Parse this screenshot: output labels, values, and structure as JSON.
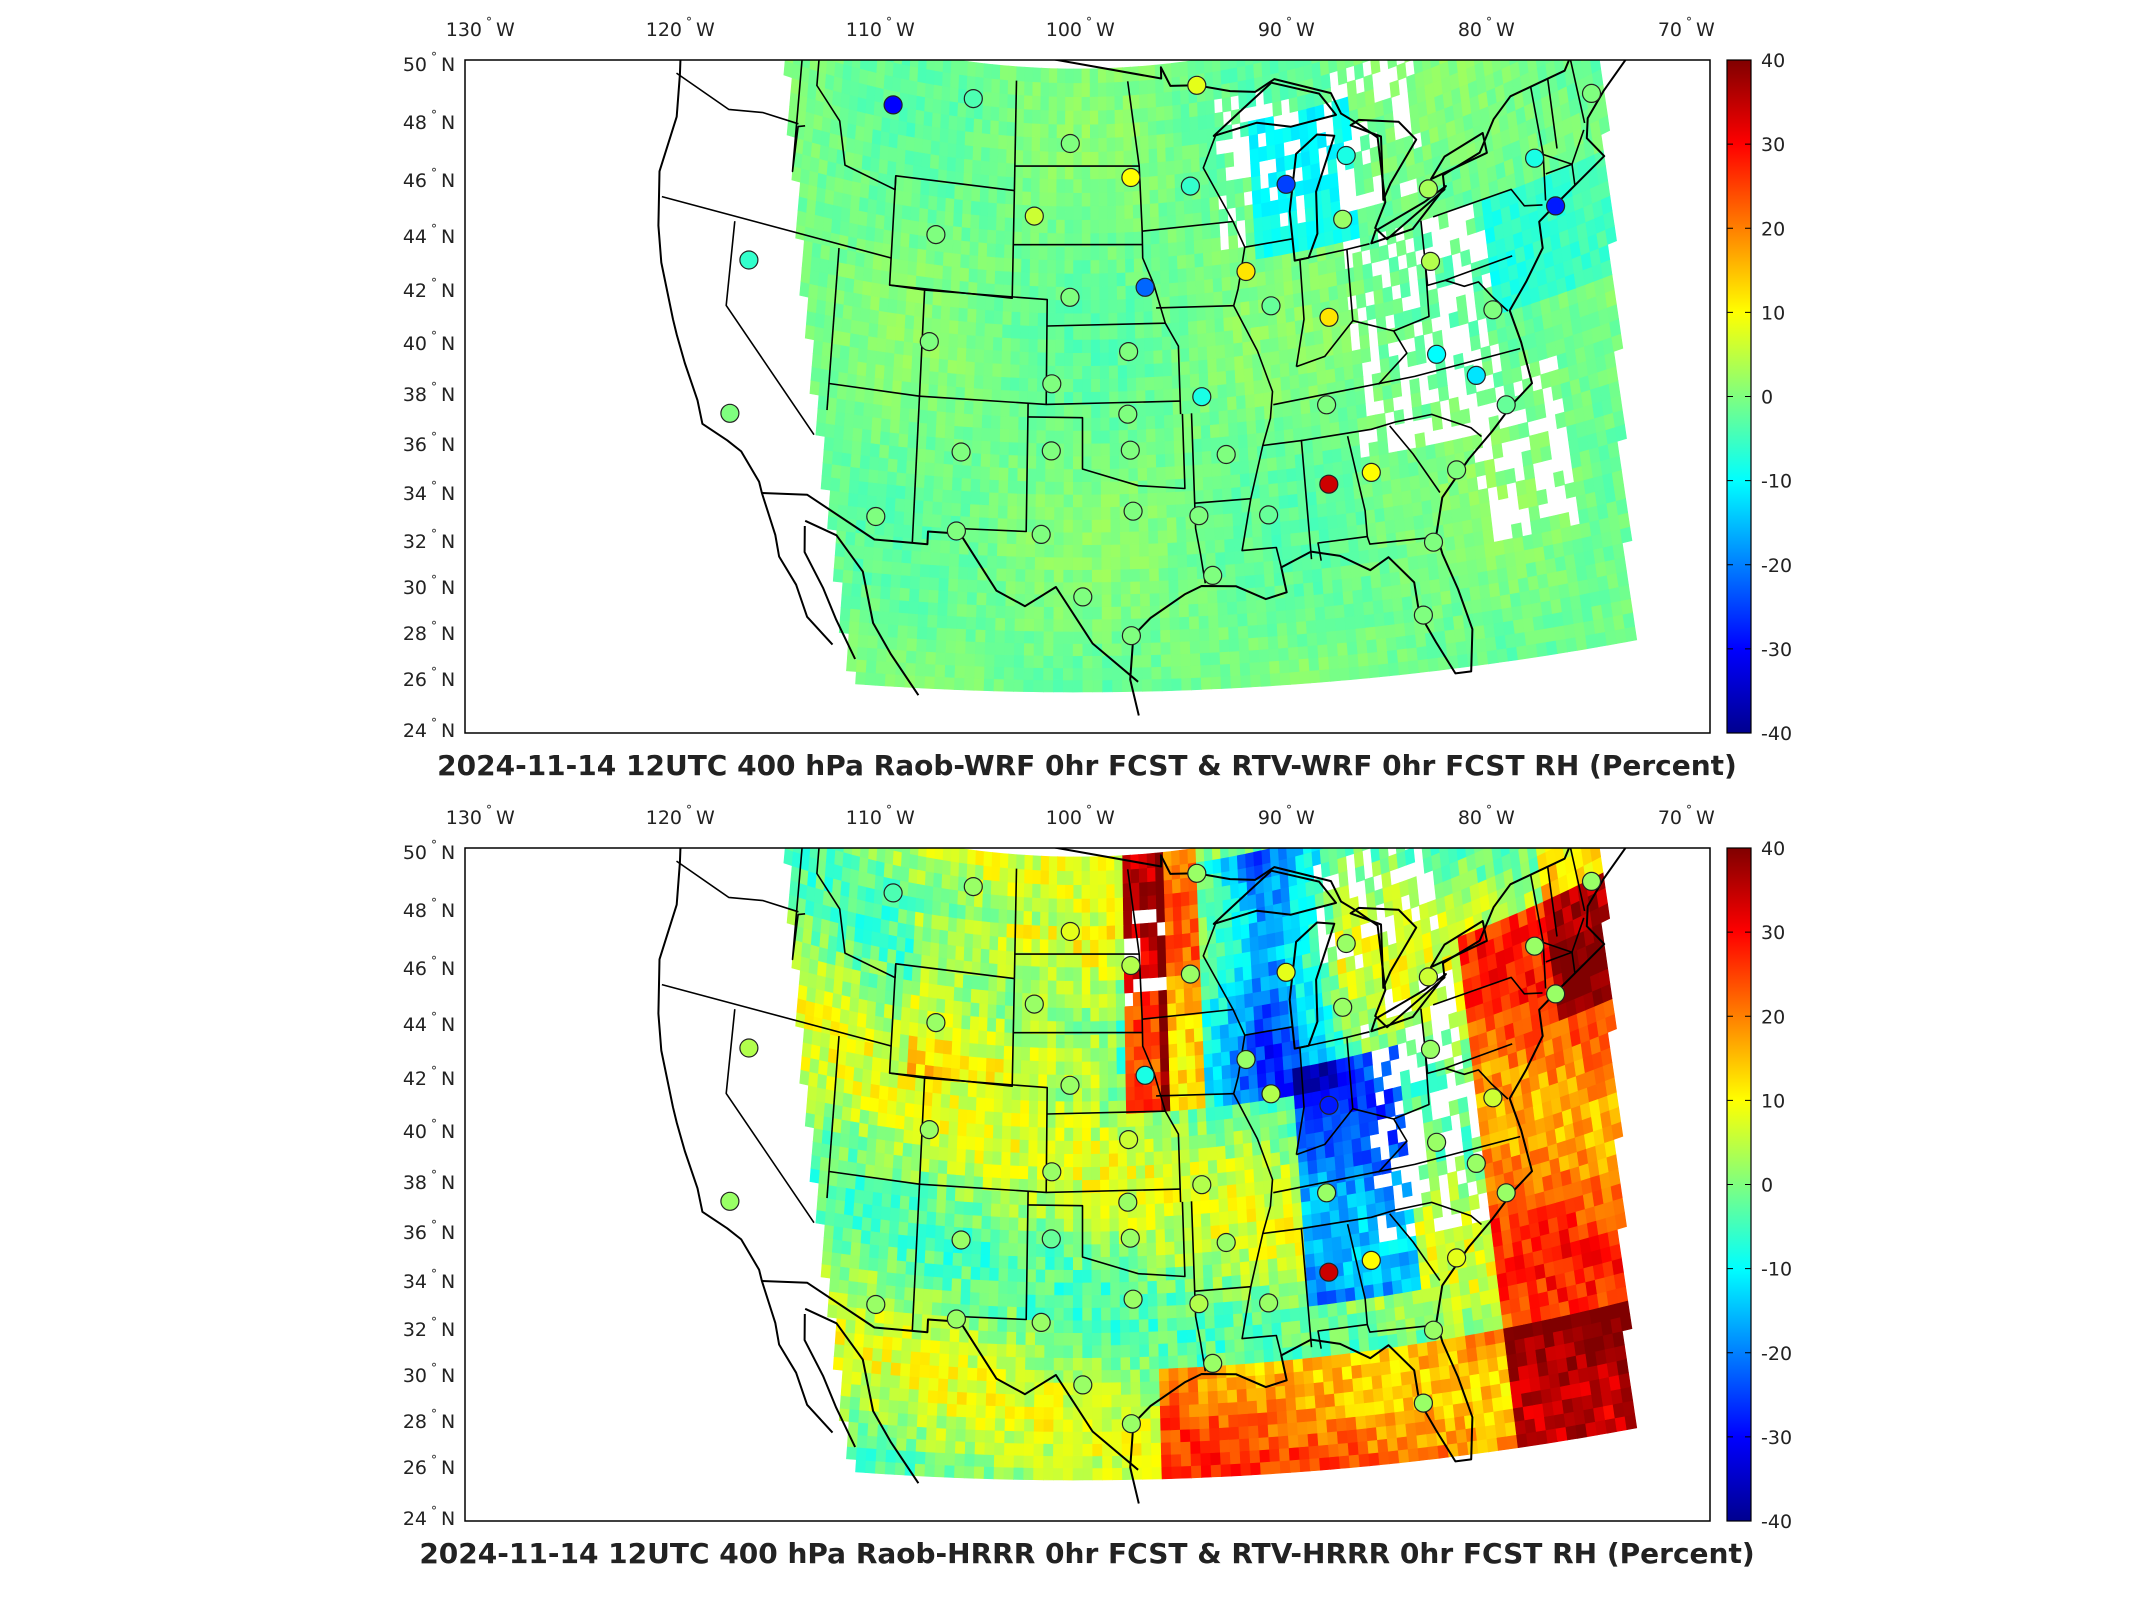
{
  "panels": [
    {
      "id": "wrf",
      "title": "2024-11-14 12UTC 400 hPa Raob-WRF 0hr FCST & RTV-WRF 0hr FCST RH (Percent)",
      "field_style": "smooth",
      "stations": [
        {
          "lon": -111.4,
          "lat": 47.5,
          "val": -30
        },
        {
          "lon": -106.6,
          "lat": 48.2,
          "val": -4
        },
        {
          "lon": -100.7,
          "lat": 46.8,
          "val": 0
        },
        {
          "lon": -93.0,
          "lat": 48.6,
          "val": 8
        },
        {
          "lon": -97.1,
          "lat": 45.5,
          "val": 10
        },
        {
          "lon": -102.8,
          "lat": 44.1,
          "val": 6
        },
        {
          "lon": -93.6,
          "lat": 45.0,
          "val": -6
        },
        {
          "lon": -88.0,
          "lat": 44.5,
          "val": -25
        },
        {
          "lon": -84.4,
          "lat": 45.0,
          "val": -8
        },
        {
          "lon": -84.9,
          "lat": 42.8,
          "val": 2
        },
        {
          "lon": -79.9,
          "lat": 43.0,
          "val": 3
        },
        {
          "lon": -73.8,
          "lat": 42.7,
          "val": -8
        },
        {
          "lon": -70.2,
          "lat": 43.9,
          "val": 0
        },
        {
          "lon": -73.0,
          "lat": 40.9,
          "val": -28
        },
        {
          "lon": -108.5,
          "lat": 43.1,
          "val": 0
        },
        {
          "lon": -119.0,
          "lat": 40.8,
          "val": -6
        },
        {
          "lon": -100.7,
          "lat": 41.1,
          "val": 0
        },
        {
          "lon": -96.4,
          "lat": 41.4,
          "val": -22
        },
        {
          "lon": -90.6,
          "lat": 41.6,
          "val": 12
        },
        {
          "lon": -89.3,
          "lat": 40.2,
          "val": -2
        },
        {
          "lon": -86.1,
          "lat": 39.4,
          "val": 12
        },
        {
          "lon": -80.2,
          "lat": 40.5,
          "val": 4
        },
        {
          "lon": -108.6,
          "lat": 39.1,
          "val": 0
        },
        {
          "lon": -97.4,
          "lat": 39.0,
          "val": 0
        },
        {
          "lon": -101.7,
          "lat": 37.8,
          "val": 0
        },
        {
          "lon": -93.4,
          "lat": 37.1,
          "val": -8
        },
        {
          "lon": -80.4,
          "lat": 37.2,
          "val": -10
        },
        {
          "lon": -77.1,
          "lat": 38.2,
          "val": 0
        },
        {
          "lon": -86.6,
          "lat": 36.2,
          "val": 0
        },
        {
          "lon": -78.4,
          "lat": 36.1,
          "val": -12
        },
        {
          "lon": -119.2,
          "lat": 35.2,
          "val": 0
        },
        {
          "lon": -106.6,
          "lat": 35.0,
          "val": 0
        },
        {
          "lon": -101.7,
          "lat": 35.2,
          "val": 0
        },
        {
          "lon": -97.5,
          "lat": 36.6,
          "val": 0
        },
        {
          "lon": -97.4,
          "lat": 35.2,
          "val": 0
        },
        {
          "lon": -92.2,
          "lat": 34.8,
          "val": 0
        },
        {
          "lon": -77.0,
          "lat": 34.8,
          "val": -2
        },
        {
          "lon": -111.0,
          "lat": 32.2,
          "val": 0
        },
        {
          "lon": -106.7,
          "lat": 31.9,
          "val": 0
        },
        {
          "lon": -102.2,
          "lat": 31.9,
          "val": 0
        },
        {
          "lon": -97.3,
          "lat": 32.8,
          "val": 0
        },
        {
          "lon": -93.8,
          "lat": 32.5,
          "val": 0
        },
        {
          "lon": -90.1,
          "lat": 32.3,
          "val": -2
        },
        {
          "lon": -86.8,
          "lat": 33.2,
          "val": 34
        },
        {
          "lon": -84.5,
          "lat": 33.4,
          "val": 10
        },
        {
          "lon": -80.0,
          "lat": 32.9,
          "val": 0
        },
        {
          "lon": -93.2,
          "lat": 30.1,
          "val": 0
        },
        {
          "lon": -81.6,
          "lat": 30.4,
          "val": 0
        },
        {
          "lon": -100.0,
          "lat": 29.4,
          "val": 0
        },
        {
          "lon": -97.5,
          "lat": 27.8,
          "val": 0
        },
        {
          "lon": -82.5,
          "lat": 27.7,
          "val": 0
        }
      ]
    },
    {
      "id": "hrrr",
      "title": "2024-11-14 12UTC 400 hPa Raob-HRRR 0hr FCST & RTV-HRRR 0hr FCST RH (Percent)",
      "field_style": "noisy",
      "stations": [
        {
          "lon": -111.4,
          "lat": 47.5,
          "val": -4
        },
        {
          "lon": -106.6,
          "lat": 48.2,
          "val": 2
        },
        {
          "lon": -100.7,
          "lat": 46.8,
          "val": 8
        },
        {
          "lon": -93.0,
          "lat": 48.6,
          "val": 2
        },
        {
          "lon": -97.1,
          "lat": 45.5,
          "val": 4
        },
        {
          "lon": -102.8,
          "lat": 44.1,
          "val": 2
        },
        {
          "lon": -93.6,
          "lat": 45.0,
          "val": 2
        },
        {
          "lon": -88.0,
          "lat": 44.5,
          "val": 8
        },
        {
          "lon": -84.4,
          "lat": 45.0,
          "val": 2
        },
        {
          "lon": -84.9,
          "lat": 42.8,
          "val": 2
        },
        {
          "lon": -79.9,
          "lat": 43.0,
          "val": 6
        },
        {
          "lon": -73.8,
          "lat": 42.7,
          "val": 2
        },
        {
          "lon": -70.2,
          "lat": 43.9,
          "val": 2
        },
        {
          "lon": -73.0,
          "lat": 40.9,
          "val": 2
        },
        {
          "lon": -108.5,
          "lat": 43.1,
          "val": 2
        },
        {
          "lon": -119.0,
          "lat": 40.8,
          "val": 4
        },
        {
          "lon": -100.7,
          "lat": 41.1,
          "val": 2
        },
        {
          "lon": -96.4,
          "lat": 41.4,
          "val": -8
        },
        {
          "lon": -90.6,
          "lat": 41.6,
          "val": 2
        },
        {
          "lon": -89.3,
          "lat": 40.2,
          "val": 4
        },
        {
          "lon": -86.1,
          "lat": 39.4,
          "val": -28
        },
        {
          "lon": -80.2,
          "lat": 40.5,
          "val": 2
        },
        {
          "lon": -108.6,
          "lat": 39.1,
          "val": 2
        },
        {
          "lon": -97.4,
          "lat": 39.0,
          "val": 6
        },
        {
          "lon": -101.7,
          "lat": 37.8,
          "val": 2
        },
        {
          "lon": -93.4,
          "lat": 37.1,
          "val": 4
        },
        {
          "lon": -80.4,
          "lat": 37.2,
          "val": 2
        },
        {
          "lon": -77.1,
          "lat": 38.2,
          "val": 6
        },
        {
          "lon": -86.6,
          "lat": 36.2,
          "val": 2
        },
        {
          "lon": -78.4,
          "lat": 36.1,
          "val": 2
        },
        {
          "lon": -119.2,
          "lat": 35.2,
          "val": 2
        },
        {
          "lon": -106.6,
          "lat": 35.0,
          "val": 2
        },
        {
          "lon": -101.7,
          "lat": 35.2,
          "val": -2
        },
        {
          "lon": -97.5,
          "lat": 36.6,
          "val": 2
        },
        {
          "lon": -97.4,
          "lat": 35.2,
          "val": 2
        },
        {
          "lon": -92.2,
          "lat": 34.8,
          "val": 2
        },
        {
          "lon": -77.0,
          "lat": 34.8,
          "val": 2
        },
        {
          "lon": -111.0,
          "lat": 32.2,
          "val": 2
        },
        {
          "lon": -106.7,
          "lat": 31.9,
          "val": 2
        },
        {
          "lon": -102.2,
          "lat": 31.9,
          "val": 2
        },
        {
          "lon": -97.3,
          "lat": 32.8,
          "val": 2
        },
        {
          "lon": -93.8,
          "lat": 32.5,
          "val": 4
        },
        {
          "lon": -90.1,
          "lat": 32.3,
          "val": 2
        },
        {
          "lon": -86.8,
          "lat": 33.2,
          "val": 34
        },
        {
          "lon": -84.5,
          "lat": 33.4,
          "val": 10
        },
        {
          "lon": -80.0,
          "lat": 32.9,
          "val": 8
        },
        {
          "lon": -93.2,
          "lat": 30.1,
          "val": 2
        },
        {
          "lon": -81.6,
          "lat": 30.4,
          "val": 2
        },
        {
          "lon": -100.0,
          "lat": 29.4,
          "val": 2
        },
        {
          "lon": -97.5,
          "lat": 27.8,
          "val": 2
        },
        {
          "lon": -82.5,
          "lat": 27.7,
          "val": 2
        }
      ]
    }
  ],
  "lon_ticks": [
    "130",
    "120",
    "110",
    "100",
    "90",
    "80",
    "70"
  ],
  "lon_suffix": "W",
  "lat_ticks": [
    "50",
    "48",
    "46",
    "44",
    "42",
    "40",
    "38",
    "36",
    "34",
    "32",
    "30",
    "28",
    "26",
    "24"
  ],
  "lat_suffix": "N",
  "colorbar": {
    "ticks": [
      "40",
      "30",
      "20",
      "10",
      "0",
      "-10",
      "-20",
      "-30",
      "-40"
    ],
    "min": -40,
    "max": 40,
    "colormap": "jet",
    "colors": [
      "#00008f",
      "#0000ff",
      "#00ffff",
      "#7fff7f",
      "#ffff00",
      "#ff0000",
      "#800000"
    ]
  },
  "colors": {
    "missing": "#ffffff",
    "station_edge": "#222222",
    "coastline": "#000000"
  },
  "chart_data": [
    {
      "type": "heatmap",
      "title": "2024-11-14 12UTC 400 hPa Raob-WRF 0hr FCST & RTV-WRF 0hr FCST RH (Percent)",
      "xlim": [
        -130,
        -70
      ],
      "ylim": [
        24,
        50
      ],
      "clim": [
        -40,
        40
      ]
    },
    {
      "type": "heatmap",
      "title": "2024-11-14 12UTC 400 hPa Raob-HRRR 0hr FCST & RTV-HRRR 0hr FCST RH (Percent)",
      "xlim": [
        -130,
        -70
      ],
      "ylim": [
        24,
        50
      ],
      "clim": [
        -40,
        40
      ]
    }
  ]
}
